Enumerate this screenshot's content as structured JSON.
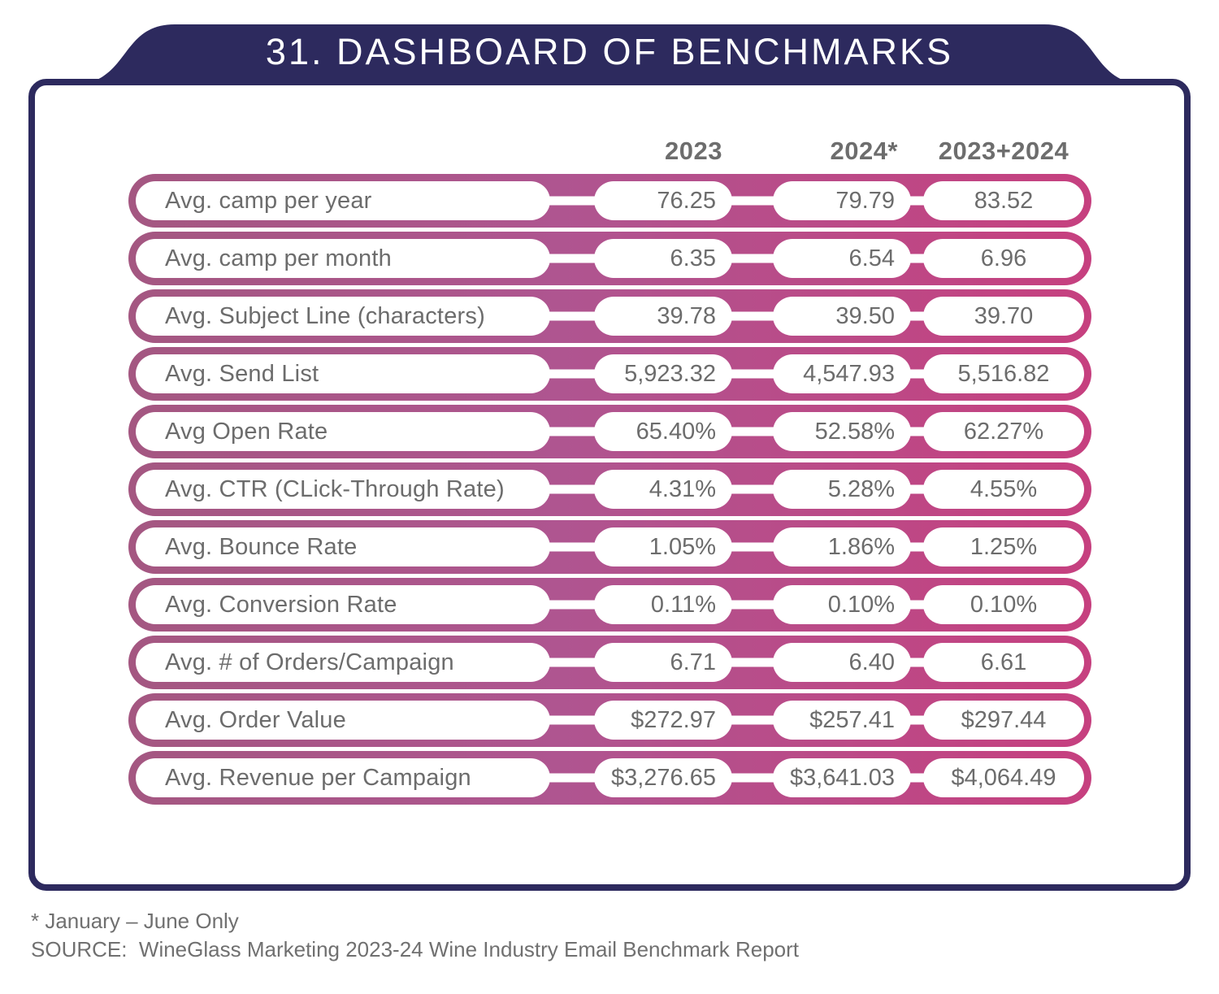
{
  "colors": {
    "navy": "#2D2A5E",
    "magenta_left": "#A45781",
    "magenta_mid": "#AF5590",
    "magenta_right": "#C6407F",
    "text_gray": "#6C6C6C",
    "header_gray": "#6D6D6D",
    "white": "#FFFFFF"
  },
  "header": {
    "title": "31. DASHBOARD OF BENCHMARKS"
  },
  "chart_data": {
    "type": "table",
    "title": "31. DASHBOARD OF BENCHMARKS",
    "columns": [
      "2023",
      "2024*",
      "2023+2024"
    ],
    "rows": [
      {
        "metric": "Avg. camp per year",
        "values": [
          "76.25",
          "79.79",
          "83.52"
        ]
      },
      {
        "metric": "Avg. camp per month",
        "values": [
          "6.35",
          "6.54",
          "6.96"
        ]
      },
      {
        "metric": "Avg. Subject Line (characters)",
        "values": [
          "39.78",
          "39.50",
          "39.70"
        ]
      },
      {
        "metric": "Avg. Send List",
        "values": [
          "5,923.32",
          "4,547.93",
          "5,516.82"
        ]
      },
      {
        "metric": "Avg Open Rate",
        "values": [
          "65.40%",
          "52.58%",
          "62.27%"
        ]
      },
      {
        "metric": "Avg. CTR (CLick-Through Rate)",
        "values": [
          "4.31%",
          "5.28%",
          "4.55%"
        ]
      },
      {
        "metric": "Avg. Bounce Rate",
        "values": [
          "1.05%",
          "1.86%",
          "1.25%"
        ]
      },
      {
        "metric": "Avg. Conversion Rate",
        "values": [
          "0.11%",
          "0.10%",
          "0.10%"
        ]
      },
      {
        "metric": "Avg. # of Orders/Campaign",
        "values": [
          "6.71",
          "6.40",
          "6.61"
        ]
      },
      {
        "metric": "Avg. Order Value",
        "values": [
          "$272.97",
          "$257.41",
          "$297.44"
        ]
      },
      {
        "metric": "Avg. Revenue per Campaign",
        "values": [
          "$3,276.65",
          "$3,641.03",
          "$4,064.49"
        ]
      }
    ]
  },
  "footnotes": {
    "asterisk_note": "* January – June Only",
    "source": "SOURCE:  WineGlass Marketing 2023-24 Wine Industry Email Benchmark Report"
  }
}
